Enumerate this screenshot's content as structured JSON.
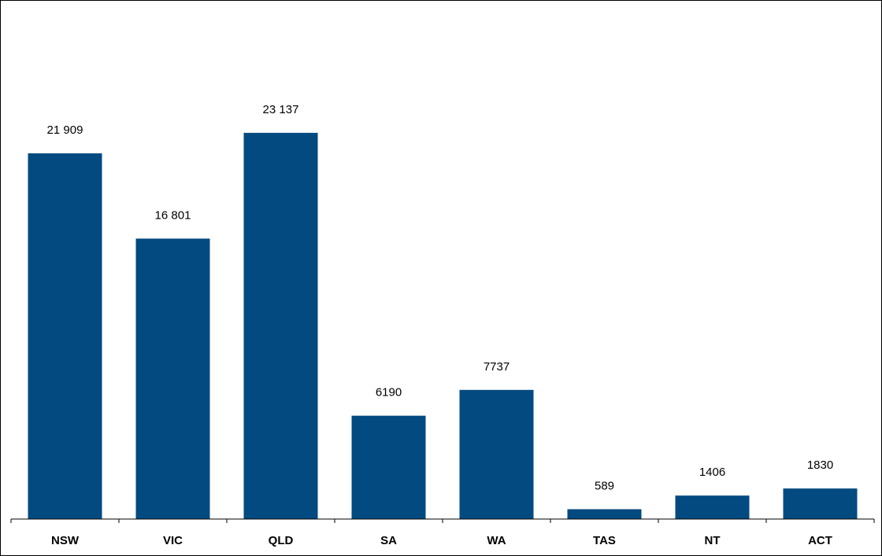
{
  "chart_data": {
    "type": "bar",
    "categories": [
      "NSW",
      "VIC",
      "QLD",
      "SA",
      "WA",
      "TAS",
      "NT",
      "ACT"
    ],
    "values": [
      21909,
      16801,
      23137,
      6190,
      7737,
      589,
      1406,
      1830
    ],
    "data_labels": [
      "21 909",
      "16 801",
      "23 137",
      "6190",
      "7737",
      "589",
      "1406",
      "1830"
    ],
    "title": "",
    "xlabel": "",
    "ylabel": "",
    "ylim": [
      0,
      31000
    ],
    "grid": false,
    "legend": "none",
    "bar_color": "#034A80"
  }
}
